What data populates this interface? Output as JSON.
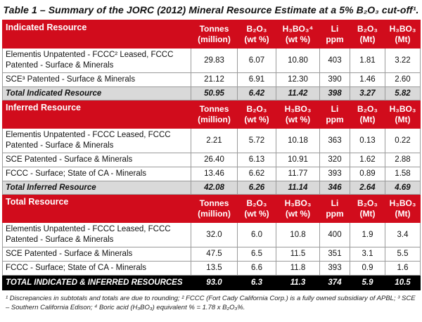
{
  "title": "Table 1 – Summary of the JORC (2012) Mineral Resource Estimate at a 5% B₂O₃ cut-off¹.",
  "columns": [
    {
      "line1": "Tonnes",
      "line2": "(million)"
    },
    {
      "line1": "B₂O₃",
      "line2": "(wt %)"
    },
    {
      "line1": "H₃BO₃⁴",
      "line2": "(wt %)"
    },
    {
      "line1": "Li",
      "line2": "ppm"
    },
    {
      "line1": "B₂O₃",
      "line2": "(Mt)"
    },
    {
      "line1": "H₃BO₃",
      "line2": "(Mt)"
    }
  ],
  "columns_plain": [
    {
      "line1": "Tonnes",
      "line2": "(million)"
    },
    {
      "line1": "B₂O₃",
      "line2": "(wt %)"
    },
    {
      "line1": "H₃BO₃",
      "line2": "(wt %)"
    },
    {
      "line1": "Li",
      "line2": "ppm"
    },
    {
      "line1": "B₂O₃",
      "line2": "(Mt)"
    },
    {
      "line1": "H₃BO₃",
      "line2": "(Mt)"
    }
  ],
  "sections": [
    {
      "title": "Indicated Resource",
      "rows": [
        {
          "label": "Elementis Unpatented - FCCC² Leased, FCCC Patented - Surface & Minerals",
          "values": [
            "29.83",
            "6.07",
            "10.80",
            "403",
            "1.81",
            "3.22"
          ]
        },
        {
          "label": "SCE³ Patented - Surface & Minerals",
          "values": [
            "21.12",
            "6.91",
            "12.30",
            "390",
            "1.46",
            "2.60"
          ]
        }
      ],
      "total": {
        "label": "Total Indicated Resource",
        "values": [
          "50.95",
          "6.42",
          "11.42",
          "398",
          "3.27",
          "5.82"
        ]
      }
    },
    {
      "title": "Inferred Resource",
      "rows": [
        {
          "label": "Elementis Unpatented - FCCC Leased, FCCC Patented - Surface & Minerals",
          "values": [
            "2.21",
            "5.72",
            "10.18",
            "363",
            "0.13",
            "0.22"
          ]
        },
        {
          "label": "SCE Patented - Surface & Minerals",
          "values": [
            "26.40",
            "6.13",
            "10.91",
            "320",
            "1.62",
            "2.88"
          ]
        },
        {
          "label": "FCCC - Surface; State of CA - Minerals",
          "values": [
            "13.46",
            "6.62",
            "11.77",
            "393",
            "0.89",
            "1.58"
          ]
        }
      ],
      "total": {
        "label": "Total Inferred Resource",
        "values": [
          "42.08",
          "6.26",
          "11.14",
          "346",
          "2.64",
          "4.69"
        ]
      }
    },
    {
      "title": "Total Resource",
      "rows": [
        {
          "label": "Elementis Unpatented - FCCC Leased, FCCC Patented - Surface & Minerals",
          "values": [
            "32.0",
            "6.0",
            "10.8",
            "400",
            "1.9",
            "3.4"
          ]
        },
        {
          "label": "SCE Patented - Surface & Minerals",
          "values": [
            "47.5",
            "6.5",
            "11.5",
            "351",
            "3.1",
            "5.5"
          ]
        },
        {
          "label": "FCCC - Surface; State of CA - Minerals",
          "values": [
            "13.5",
            "6.6",
            "11.8",
            "393",
            "0.9",
            "1.6"
          ]
        }
      ]
    }
  ],
  "grand_total": {
    "label": "TOTAL INDICATED & INFERRED RESOURCES",
    "values": [
      "93.0",
      "6.3",
      "11.3",
      "374",
      "5.9",
      "10.5"
    ]
  },
  "footnote": "¹ Discrepancies in subtotals and totals are due to rounding; ² FCCC (Fort Cady California Corp.) is a fully owned subsidiary of APBL; ³ SCE – Southern California Edison; ⁴ Boric acid (H₃BO₃) equivalent % = 1.78 x B₂O₃%.",
  "colors": {
    "header_red": "#d10c1c",
    "total_grey": "#d9d9d9",
    "grand_black": "#000000"
  }
}
